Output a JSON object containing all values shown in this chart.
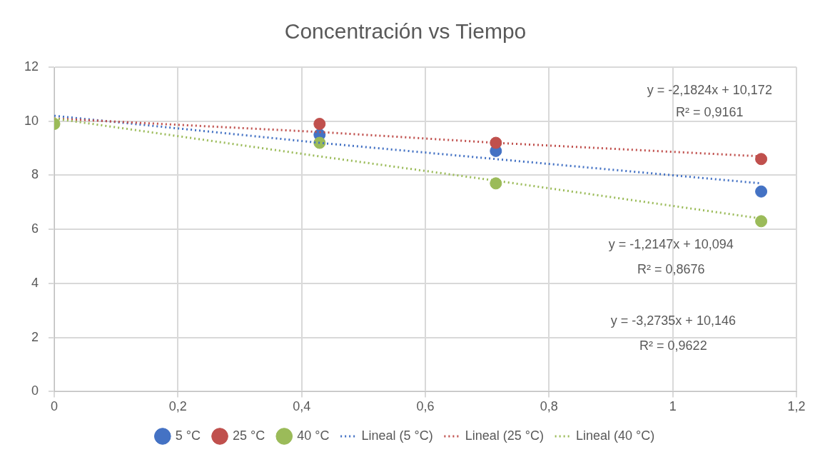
{
  "chart_data": {
    "type": "scatter",
    "title": "Concentración vs Tiempo",
    "x": [
      0,
      0.429,
      0.714,
      1.143
    ],
    "series": [
      {
        "name": "5 °C",
        "color": "#4472c4",
        "values": [
          null,
          9.5,
          8.9,
          7.4
        ]
      },
      {
        "name": "25 °C",
        "color": "#c0504d",
        "values": [
          null,
          9.9,
          9.2,
          8.6
        ]
      },
      {
        "name": "40 °C",
        "color": "#9bbb59",
        "values": [
          9.9,
          9.2,
          7.7,
          6.3
        ]
      },
      {
        "name": "Lineal (5 °C)",
        "type": "line",
        "color": "#4472c4",
        "values": [
          10.2,
          9.2,
          8.6,
          7.7
        ],
        "line_style": "dotted",
        "marker": "none"
      },
      {
        "name": "Lineal (25 °C)",
        "type": "line",
        "color": "#c0504d",
        "values": [
          10.1,
          9.6,
          9.2,
          8.7
        ],
        "line_style": "dotted",
        "marker": "none"
      },
      {
        "name": "Lineal (40 °C)",
        "type": "line",
        "color": "#9bbb59",
        "values": [
          10.1,
          8.7,
          7.8,
          6.4
        ],
        "line_style": "dotted",
        "marker": "none"
      }
    ],
    "xlim": [
      0,
      1.2
    ],
    "xticks": [
      0,
      {
        "value": 0.2,
        "label": "0,2"
      },
      {
        "value": 0.4,
        "label": "0,4"
      },
      {
        "value": 0.6,
        "label": "0,6"
      },
      {
        "value": 0.8,
        "label": "0,8"
      },
      1,
      {
        "value": 1.2,
        "label": "1,2"
      }
    ],
    "ylim": [
      0,
      12
    ],
    "yticks": [
      0,
      2,
      4,
      6,
      8,
      10,
      12
    ],
    "grid": true,
    "legend": "bottom",
    "marker": "circle",
    "annotations": [
      "y = -2,1824x + 10,172",
      "R² = 0,9161",
      "y = -1,2147x + 10,094",
      "R² = 0,8676",
      "y = -3,2735x + 10,146",
      "R² = 0,9622"
    ]
  }
}
